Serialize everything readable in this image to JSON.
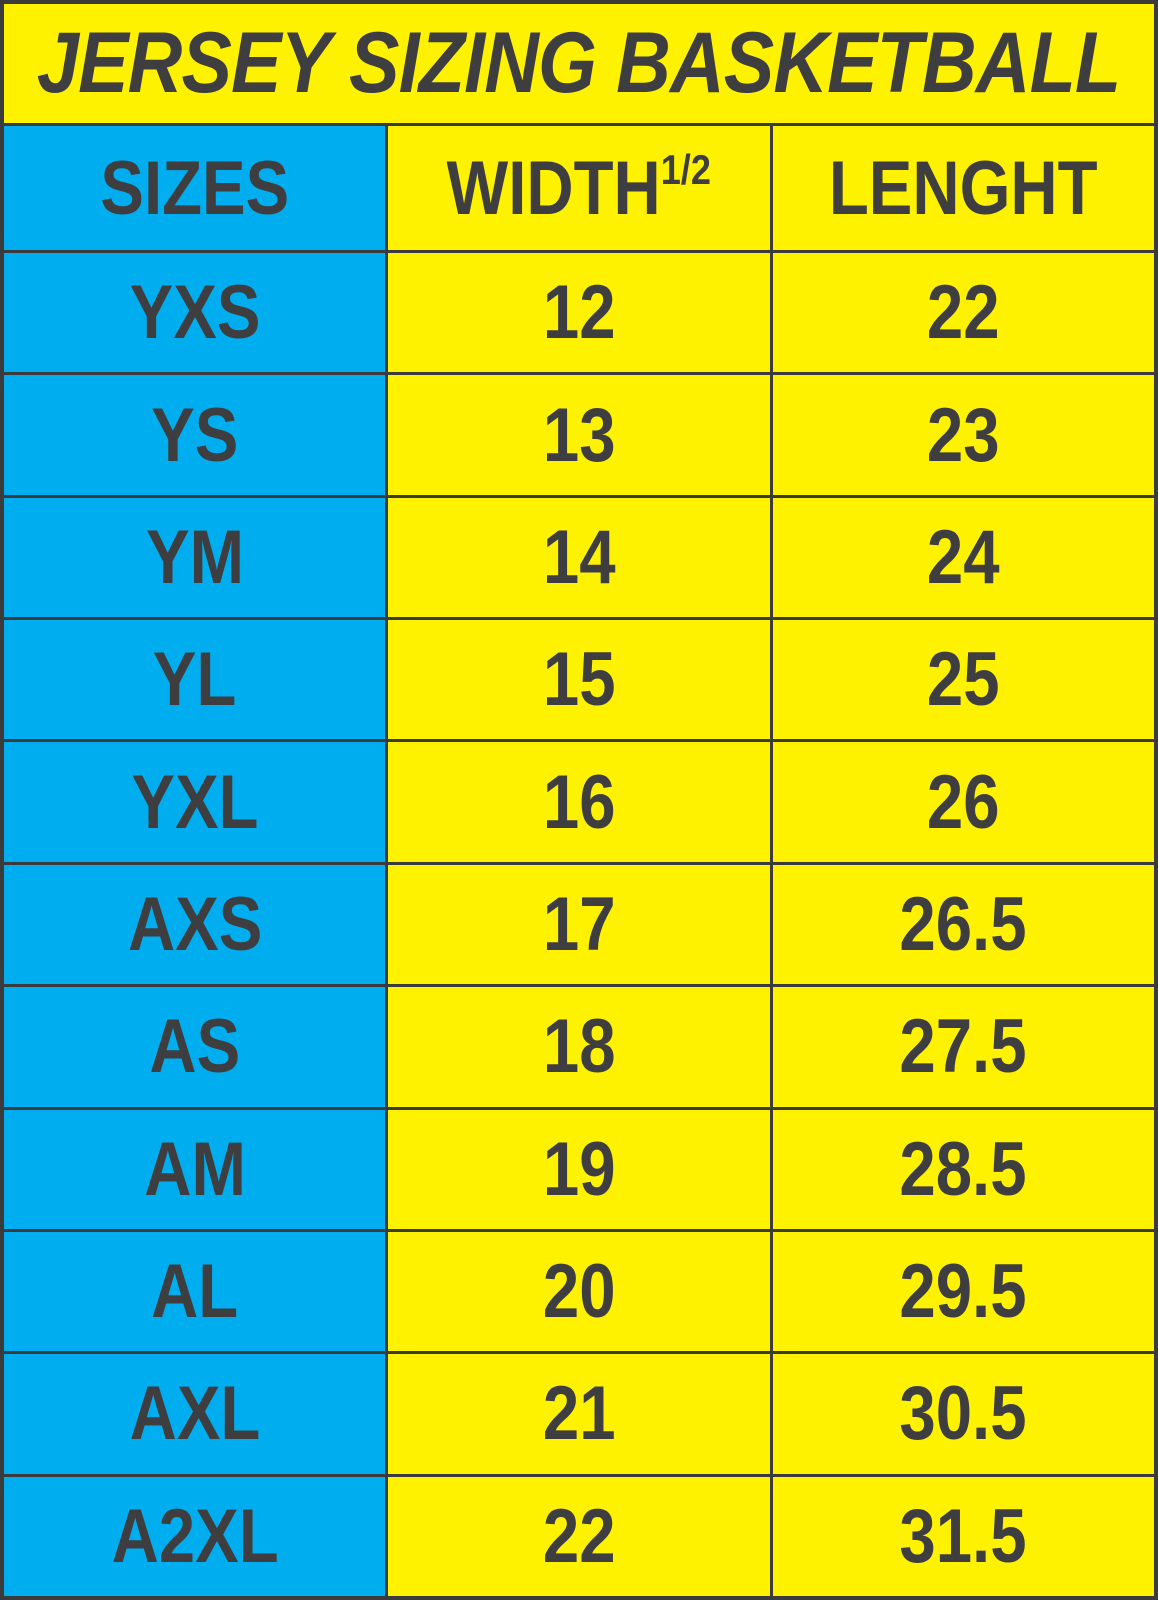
{
  "title": "JERSEY SIZING BASKETBALL",
  "colors": {
    "banner_yellow": "#FFF200",
    "sizes_blue": "#00AEEF",
    "ink": "#3E3E40",
    "border": "#3B3B3D"
  },
  "table": {
    "headers": {
      "sizes": "SIZES",
      "width": "WIDTH",
      "width_sup": "1/2",
      "length": "LENGHT"
    },
    "rows": [
      {
        "size": "YXS",
        "width": "12",
        "length": "22"
      },
      {
        "size": "YS",
        "width": "13",
        "length": "23"
      },
      {
        "size": "YM",
        "width": "14",
        "length": "24"
      },
      {
        "size": "YL",
        "width": "15",
        "length": "25"
      },
      {
        "size": "YXL",
        "width": "16",
        "length": "26"
      },
      {
        "size": "AXS",
        "width": "17",
        "length": "26.5"
      },
      {
        "size": "AS",
        "width": "18",
        "length": "27.5"
      },
      {
        "size": "AM",
        "width": "19",
        "length": "28.5"
      },
      {
        "size": "AL",
        "width": "20",
        "length": "29.5"
      },
      {
        "size": "AXL",
        "width": "21",
        "length": "30.5"
      },
      {
        "size": "A2XL",
        "width": "22",
        "length": "31.5"
      }
    ]
  },
  "chart_data": {
    "type": "table",
    "title": "JERSEY SIZING BASKETBALL",
    "columns": [
      "SIZES",
      "WIDTH 1/2",
      "LENGHT"
    ],
    "rows": [
      [
        "YXS",
        12,
        22
      ],
      [
        "YS",
        13,
        23
      ],
      [
        "YM",
        14,
        24
      ],
      [
        "YL",
        15,
        25
      ],
      [
        "YXL",
        16,
        26
      ],
      [
        "AXS",
        17,
        26.5
      ],
      [
        "AS",
        18,
        27.5
      ],
      [
        "AM",
        19,
        28.5
      ],
      [
        "AL",
        20,
        29.5
      ],
      [
        "AXL",
        21,
        30.5
      ],
      [
        "A2XL",
        22,
        31.5
      ]
    ]
  }
}
